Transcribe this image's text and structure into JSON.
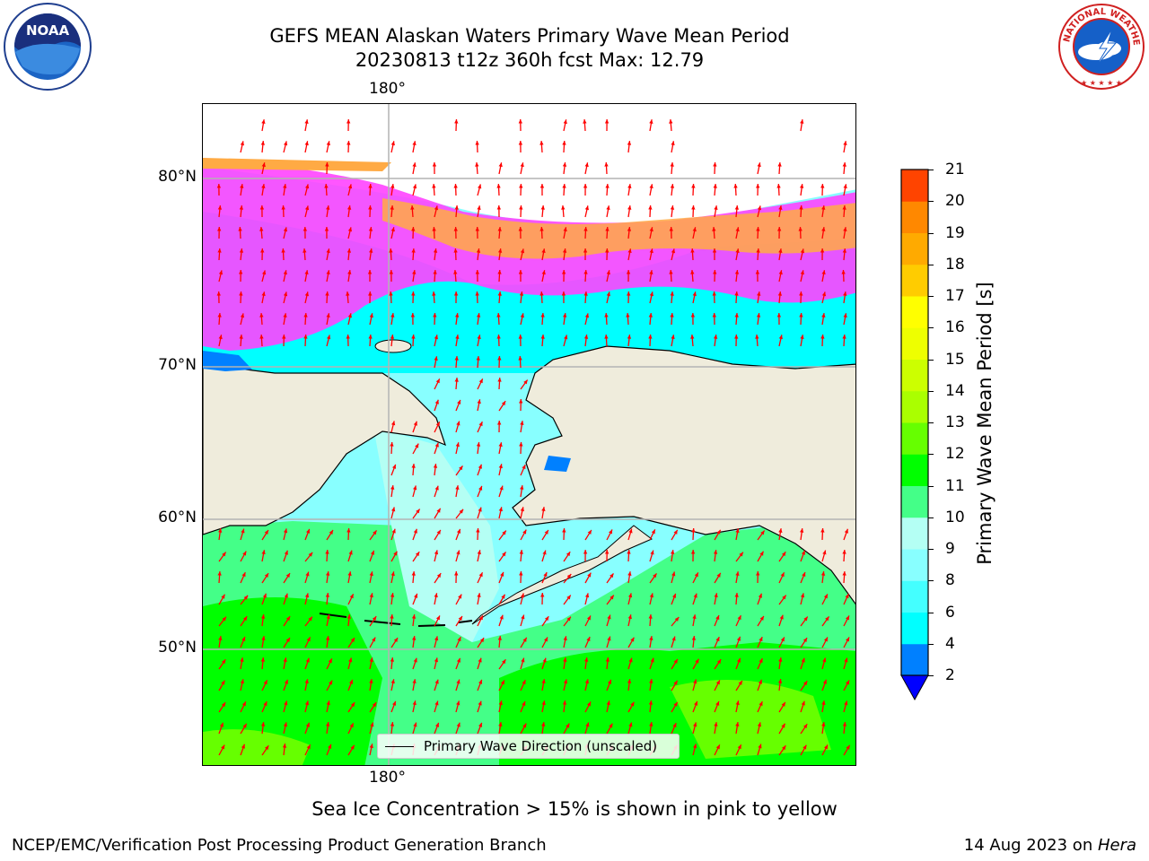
{
  "header": {
    "title_line1": "GEFS MEAN Alaskan Waters Primary Wave Mean Period",
    "title_line2": "20230813 t12z 360h fcst   Max: 12.79"
  },
  "logos": {
    "left": {
      "icon": "noaa-logo-icon",
      "text": "NOAA"
    },
    "right": {
      "icon": "national-weather-service-logo-icon",
      "text": "NATIONAL WEATHER SERVICE"
    }
  },
  "map": {
    "lon_label_top": "180°",
    "lon_label_bottom": "180°",
    "lat_labels": [
      "80°N",
      "70°N",
      "60°N",
      "50°N"
    ],
    "legend_text": "Primary Wave Direction (unscaled)",
    "colors": {
      "land": "#efecdc",
      "arrow": "#ff0000",
      "grid": "#b4b4b4",
      "sea_ice": [
        "#ff44ff",
        "#ff88cc",
        "#ffaa44"
      ]
    }
  },
  "colorbar": {
    "label": "Primary Wave Mean Period [s]",
    "ticks": [
      "2",
      "4",
      "6",
      "8",
      "9",
      "10",
      "11",
      "12",
      "13",
      "14",
      "15",
      "16",
      "17",
      "18",
      "19",
      "20",
      "21"
    ],
    "colors": [
      "#0080ff",
      "#00ffff",
      "#44ffff",
      "#88ffff",
      "#b4fff4",
      "#44ff88",
      "#00ff00",
      "#66ff00",
      "#aaff00",
      "#ccff00",
      "#eeff00",
      "#ffff00",
      "#ffcc00",
      "#ffaa00",
      "#ff8800",
      "#ff4400",
      "#ff0000"
    ],
    "under_color": "#0000ff"
  },
  "footer": {
    "note": "Sea Ice Concentration > 15% is shown in pink to yellow",
    "left": "NCEP/EMC/Verification Post Processing Product Generation Branch",
    "right_prefix": "14 Aug 2023 on ",
    "right_machine": "Hera"
  }
}
